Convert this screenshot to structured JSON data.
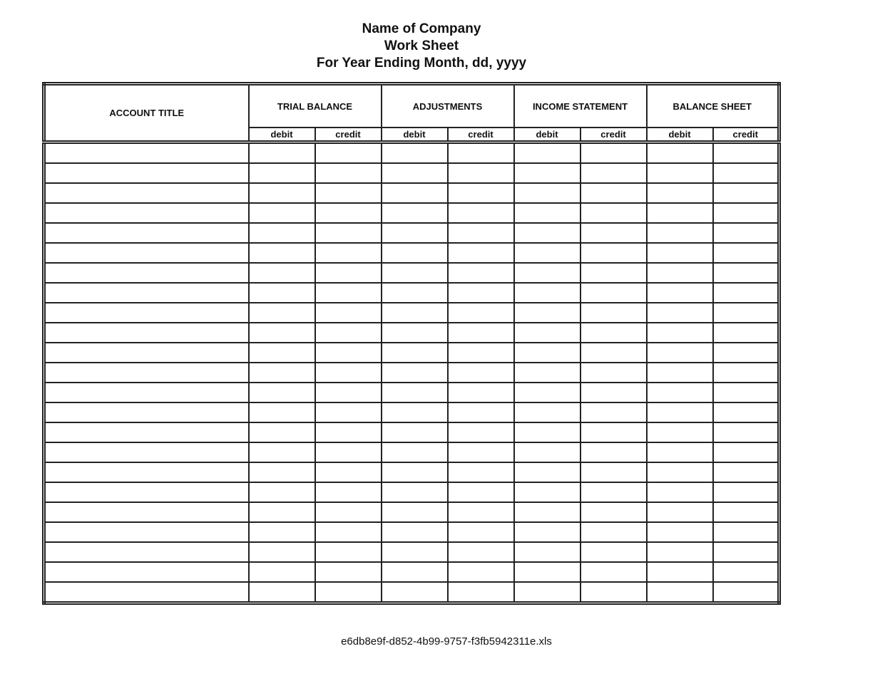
{
  "header": {
    "company": "Name of Company",
    "title": "Work Sheet",
    "period": "For Year Ending Month, dd, yyyy"
  },
  "table": {
    "account_title": "ACCOUNT TITLE",
    "groups": [
      "TRIAL BALANCE",
      "ADJUSTMENTS",
      "INCOME STATEMENT",
      "BALANCE SHEET"
    ],
    "debit_label": "debit",
    "credit_label": "credit",
    "rows": 23
  },
  "footer": {
    "filename": "e6db8e9f-d852-4b99-9757-f3fb5942311e.xls"
  }
}
